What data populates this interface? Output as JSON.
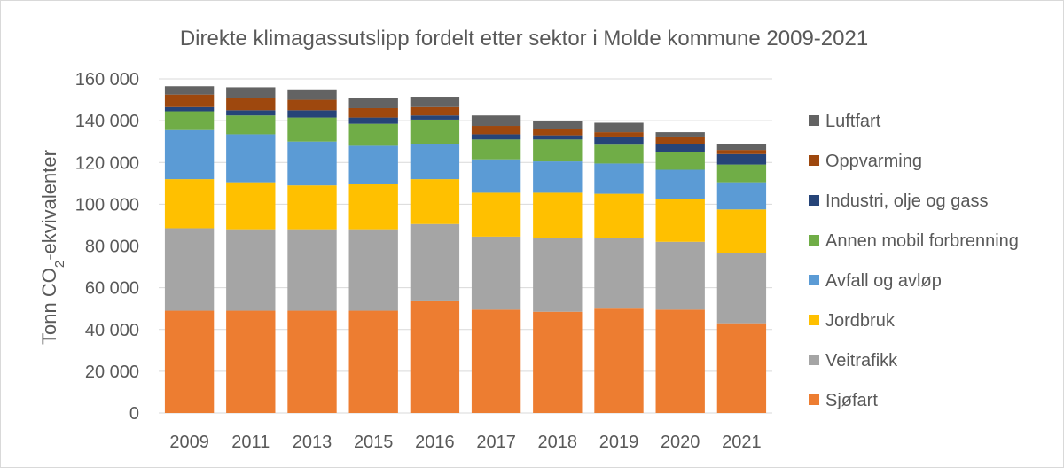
{
  "chart_data": {
    "type": "bar",
    "stacked": true,
    "title": "Direkte klimagassutslipp fordelt etter sektor i Molde kommune 2009-2021",
    "ylabel_prefix": "Tonn CO",
    "ylabel_sub": "2",
    "ylabel_suffix": "-ekvivalenter",
    "xlabel": "",
    "ylim": [
      0,
      160000
    ],
    "yticks": [
      0,
      20000,
      40000,
      60000,
      80000,
      100000,
      120000,
      140000,
      160000
    ],
    "ytick_labels": [
      "0",
      "20 000",
      "40 000",
      "60 000",
      "80 000",
      "100 000",
      "120 000",
      "140 000",
      "160 000"
    ],
    "grid": true,
    "legend_position": "right",
    "categories": [
      "2009",
      "2011",
      "2013",
      "2015",
      "2016",
      "2017",
      "2018",
      "2019",
      "2020",
      "2021"
    ],
    "series": [
      {
        "name": "Sjøfart",
        "color": "#ed7d31",
        "values": [
          49000,
          49000,
          49000,
          49000,
          53500,
          49500,
          48500,
          50000,
          49500,
          43000
        ]
      },
      {
        "name": "Veitrafikk",
        "color": "#a5a5a5",
        "values": [
          39500,
          39000,
          39000,
          39000,
          37000,
          35000,
          35500,
          34000,
          32500,
          33500
        ]
      },
      {
        "name": "Jordbruk",
        "color": "#ffc000",
        "values": [
          23500,
          22500,
          21000,
          21500,
          21500,
          21000,
          21500,
          21000,
          20500,
          21000
        ]
      },
      {
        "name": "Avfall og avløp",
        "color": "#5b9bd5",
        "values": [
          23500,
          23000,
          21000,
          18500,
          17000,
          16000,
          15000,
          14500,
          14000,
          13000
        ]
      },
      {
        "name": "Annen mobil forbrenning",
        "color": "#70ad47",
        "values": [
          9000,
          9000,
          11500,
          10500,
          11500,
          9500,
          10500,
          9000,
          8500,
          8500
        ]
      },
      {
        "name": "Industri, olje og gass",
        "color": "#264478",
        "values": [
          2000,
          2500,
          3500,
          3000,
          2000,
          2500,
          2000,
          3500,
          4000,
          5000
        ]
      },
      {
        "name": "Oppvarming",
        "color": "#9e480e",
        "values": [
          6000,
          6000,
          5000,
          4500,
          4000,
          4000,
          3000,
          2500,
          3000,
          2000
        ]
      },
      {
        "name": "Luftfart",
        "color": "#636363",
        "values": [
          4000,
          5000,
          5000,
          5000,
          5000,
          5000,
          4000,
          4500,
          2500,
          3000
        ]
      }
    ],
    "legend_order": [
      "Luftfart",
      "Oppvarming",
      "Industri, olje og gass",
      "Annen mobil forbrenning",
      "Avfall og avløp",
      "Jordbruk",
      "Veitrafikk",
      "Sjøfart"
    ],
    "colors": {
      "text": "#595959",
      "grid": "#d9d9d9",
      "axis": "#d9d9d9"
    }
  }
}
